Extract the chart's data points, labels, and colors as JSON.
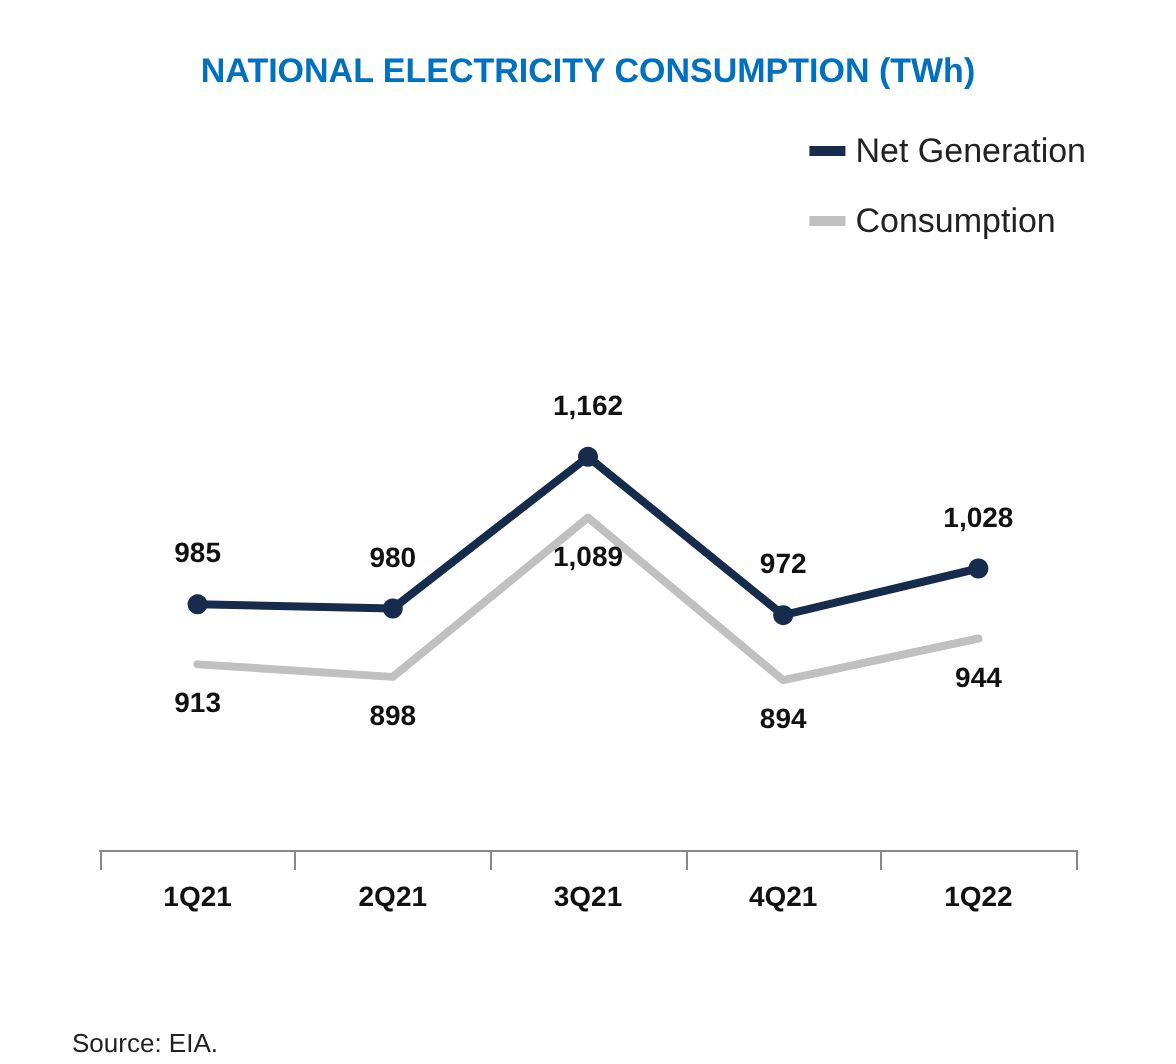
{
  "chart_data": {
    "type": "line",
    "title": "NATIONAL ELECTRICITY CONSUMPTION (TWh)",
    "categories": [
      "1Q21",
      "2Q21",
      "3Q21",
      "4Q21",
      "1Q22"
    ],
    "series": [
      {
        "name": "Net Generation",
        "color": "#172b4d",
        "values": [
          985,
          980,
          1162,
          972,
          1028
        ],
        "value_labels": [
          "985",
          "980",
          "1,162",
          "972",
          "1,028"
        ],
        "marker": "circle"
      },
      {
        "name": "Consumption",
        "color": "#c0c0c0",
        "values": [
          913,
          898,
          1089,
          894,
          944
        ],
        "value_labels": [
          "913",
          "898",
          "1,089",
          "894",
          "944"
        ],
        "marker": "none"
      }
    ],
    "grid": false,
    "legend": "top right",
    "line_style": "solid",
    "annotations": [
      "Source: EIA."
    ]
  }
}
